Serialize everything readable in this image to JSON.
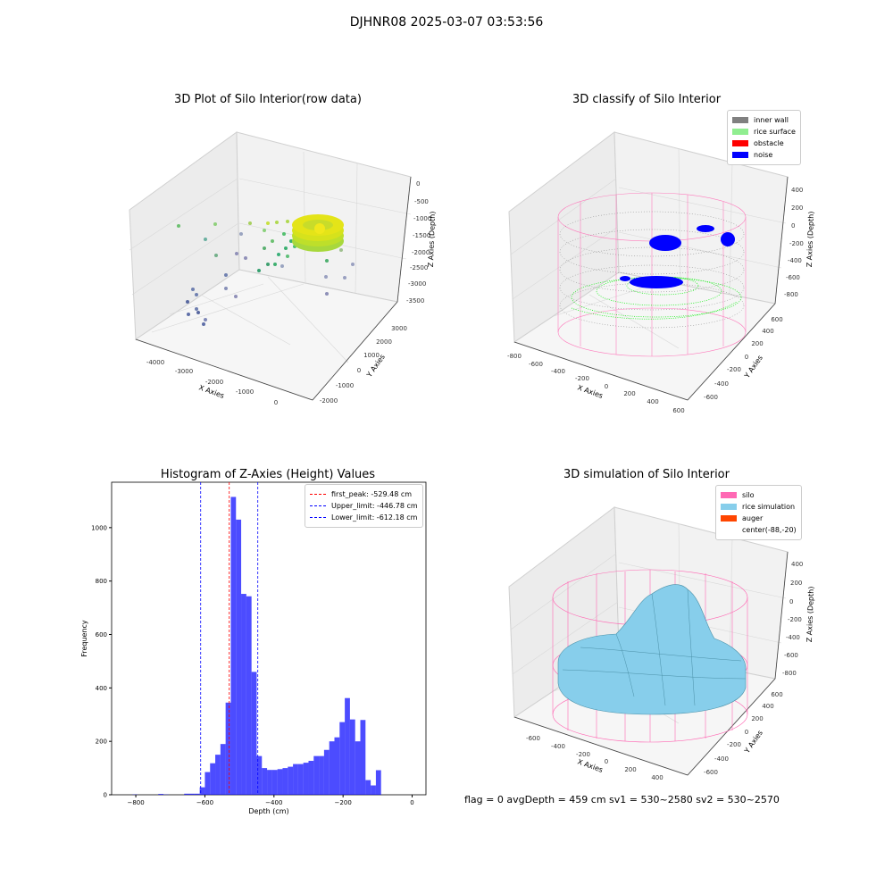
{
  "suptitle": "DJHNR08 2025-03-07 03:53:56",
  "panels": {
    "raw": {
      "title": "3D Plot of Silo Interior(row data)",
      "xlabel": "X Axies",
      "ylabel": "Y Axies",
      "zlabel": "Z Axies (Depth)",
      "xticks": [
        "-4000",
        "-3000",
        "-2000",
        "-1000",
        "0"
      ],
      "yticks": [
        "-2000",
        "-1000",
        "0",
        "1000",
        "2000",
        "3000"
      ],
      "zticks": [
        "0",
        "-500",
        "-1000",
        "-1500",
        "-2000",
        "-2500",
        "-3000",
        "-3500"
      ]
    },
    "classify": {
      "title": "3D classify of Silo Interior",
      "xlabel": "X Axies",
      "ylabel": "Y Axies",
      "zlabel": "Z Axies (Depth)",
      "xticks": [
        "-800",
        "-600",
        "-400",
        "-200",
        "0",
        "200",
        "400",
        "600"
      ],
      "yticks": [
        "-600",
        "-400",
        "-200",
        "0",
        "200",
        "400",
        "600"
      ],
      "zticks": [
        "400",
        "200",
        "0",
        "-200",
        "-400",
        "-600",
        "-800"
      ],
      "legend": [
        {
          "label": "inner wall",
          "color": "#808080"
        },
        {
          "label": "rice surface",
          "color": "#90ee90"
        },
        {
          "label": "obstacle",
          "color": "#ff0000"
        },
        {
          "label": "noise",
          "color": "#0000ff"
        }
      ]
    },
    "simulation": {
      "title": "3D simulation of Silo Interior",
      "xlabel": "X Axies",
      "ylabel": "Y Axies",
      "zlabel": "Z Axies (Depth)",
      "xticks": [
        "-600",
        "-400",
        "-200",
        "0",
        "200",
        "400"
      ],
      "yticks": [
        "-600",
        "-400",
        "-200",
        "0",
        "200",
        "400",
        "600"
      ],
      "zticks": [
        "400",
        "200",
        "0",
        "-200",
        "-400",
        "-600",
        "-800"
      ],
      "legend": [
        {
          "label": "silo",
          "color": "#ff69b4"
        },
        {
          "label": "rice simulation",
          "color": "#87ceeb"
        },
        {
          "label": "auger",
          "color": "#ff4500"
        },
        {
          "label": "center(-88,-20)",
          "color": ""
        }
      ]
    }
  },
  "chart_data": {
    "type": "bar",
    "title": "Histogram of Z-Axies (Height) Values",
    "xlabel": "Depth (cm)",
    "ylabel": "Frequency",
    "xlim": [
      -870,
      40
    ],
    "ylim": [
      0,
      1170
    ],
    "xticks": [
      -800,
      -600,
      -400,
      -200,
      0
    ],
    "yticks": [
      0,
      200,
      400,
      600,
      800,
      1000
    ],
    "bar_color": "#0000ff",
    "bin_start": -870,
    "bin_width": 15,
    "values": [
      0,
      0,
      0,
      0,
      1,
      0,
      0,
      0,
      0,
      3,
      1,
      0,
      0,
      0,
      4,
      4,
      4,
      28,
      85,
      118,
      150,
      190,
      345,
      1115,
      1030,
      752,
      743,
      460,
      145,
      100,
      93,
      93,
      96,
      100,
      105,
      115,
      115,
      120,
      127,
      145,
      145,
      168,
      200,
      215,
      272,
      362,
      282,
      200,
      280,
      55,
      35,
      92
    ],
    "lines": [
      {
        "label": "first_peak: -529.48 cm",
        "x": -529.48,
        "color": "#ff0000"
      },
      {
        "label": "Upper_limit: -446.78 cm",
        "x": -446.78,
        "color": "#0000ff"
      },
      {
        "label": "Lower_limit: -612.18 cm",
        "x": -612.18,
        "color": "#0000ff"
      }
    ]
  },
  "footer": "flag = 0     avgDepth = 459 cm  sv1 = 530~2580  sv2 = 530~2570"
}
